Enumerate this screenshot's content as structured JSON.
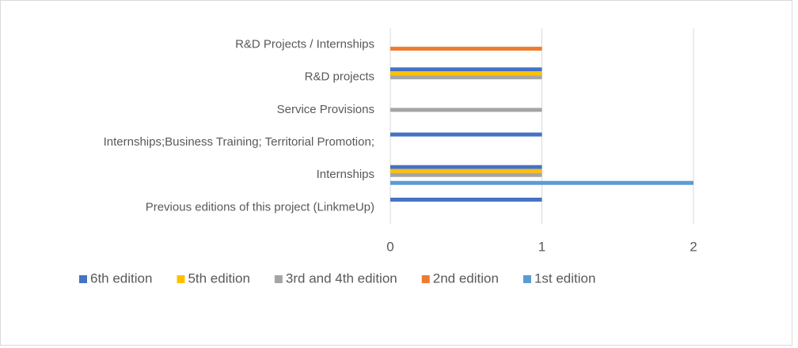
{
  "chart_data": {
    "type": "hbar",
    "categories": [
      "R&D Projects / Internships",
      "R&D projects",
      "Service Provisions",
      "Internships;Business Training; Territorial Promotion;",
      "Internships",
      "Previous editions of this project (LinkmeUp)"
    ],
    "series": [
      {
        "name": "6th edition",
        "color": "#4472c4",
        "values": [
          null,
          1,
          null,
          1,
          1,
          1
        ]
      },
      {
        "name": "5th edition",
        "color": "#ffc000",
        "values": [
          null,
          1,
          null,
          null,
          1,
          null
        ]
      },
      {
        "name": "3rd and 4th edition",
        "color": "#a5a5a5",
        "values": [
          null,
          1,
          1,
          null,
          1,
          null
        ]
      },
      {
        "name": "2nd edition",
        "color": "#ed7d31",
        "values": [
          1,
          null,
          null,
          null,
          null,
          null
        ]
      },
      {
        "name": "1st edition",
        "color": "#5b9bd5",
        "values": [
          null,
          null,
          null,
          null,
          2,
          null
        ]
      }
    ],
    "xlim": [
      0,
      2
    ],
    "xticks": [
      0,
      1,
      2
    ],
    "grid": true,
    "legend": "bottom"
  }
}
